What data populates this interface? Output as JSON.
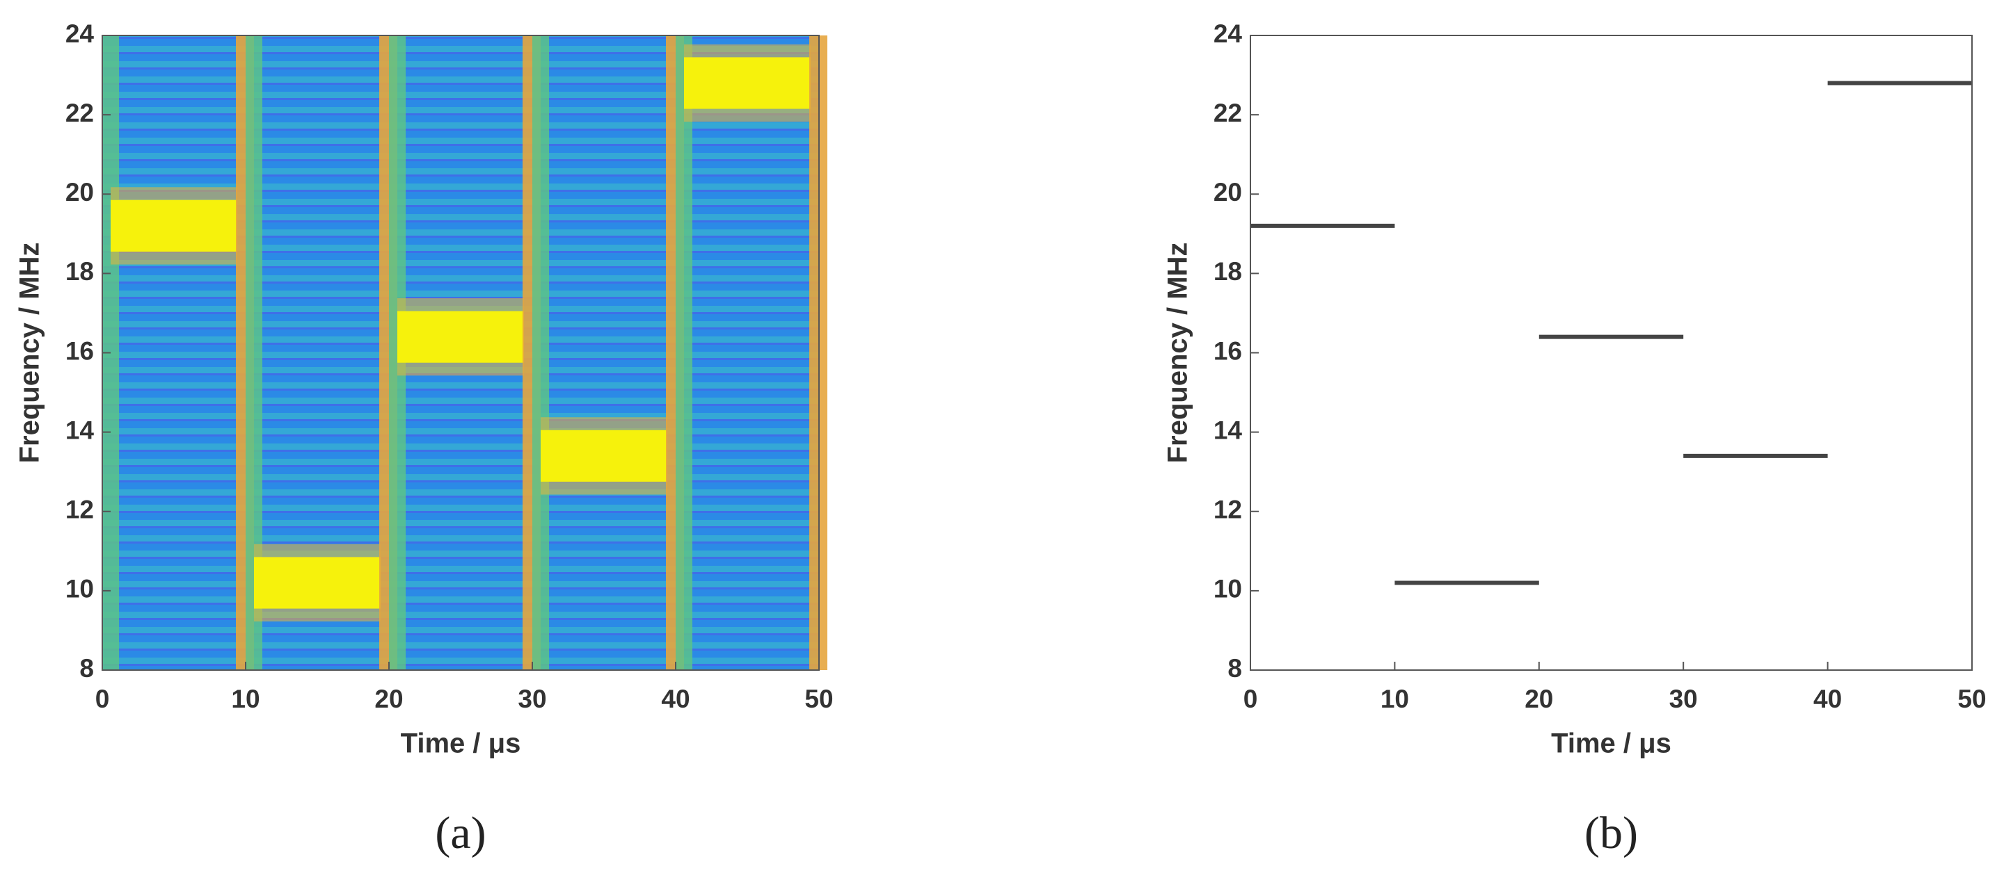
{
  "chart_data": [
    {
      "type": "spectrogram",
      "label": "(a)",
      "x_label": "Time / μs",
      "y_label": "Frequency / MHz",
      "x_start": [
        0,
        10,
        20,
        30,
        40
      ],
      "x_end": [
        10,
        20,
        30,
        40,
        50
      ],
      "values": [
        19.2,
        10.2,
        16.4,
        13.4,
        22.8
      ],
      "xlim": [
        0,
        50
      ],
      "xticks": [
        0,
        10,
        20,
        30,
        40,
        50
      ],
      "ylim": [
        8,
        24
      ],
      "yticks": [
        8,
        10,
        12,
        14,
        16,
        18,
        20,
        22,
        24
      ],
      "color": "#f6f20c"
    },
    {
      "type": "segments",
      "label": "(b)",
      "x_label": "Time / μs",
      "y_label": "Frequency / MHz",
      "x_start": [
        0,
        10,
        20,
        30,
        40
      ],
      "x_end": [
        10,
        20,
        30,
        40,
        50
      ],
      "values": [
        19.2,
        10.2,
        16.4,
        13.4,
        22.8
      ],
      "xlim": [
        0,
        50
      ],
      "xticks": [
        0,
        10,
        20,
        30,
        40,
        50
      ],
      "ylim": [
        8,
        24
      ],
      "yticks": [
        8,
        10,
        12,
        14,
        16,
        18,
        20,
        22,
        24
      ],
      "color": "#444444"
    }
  ]
}
